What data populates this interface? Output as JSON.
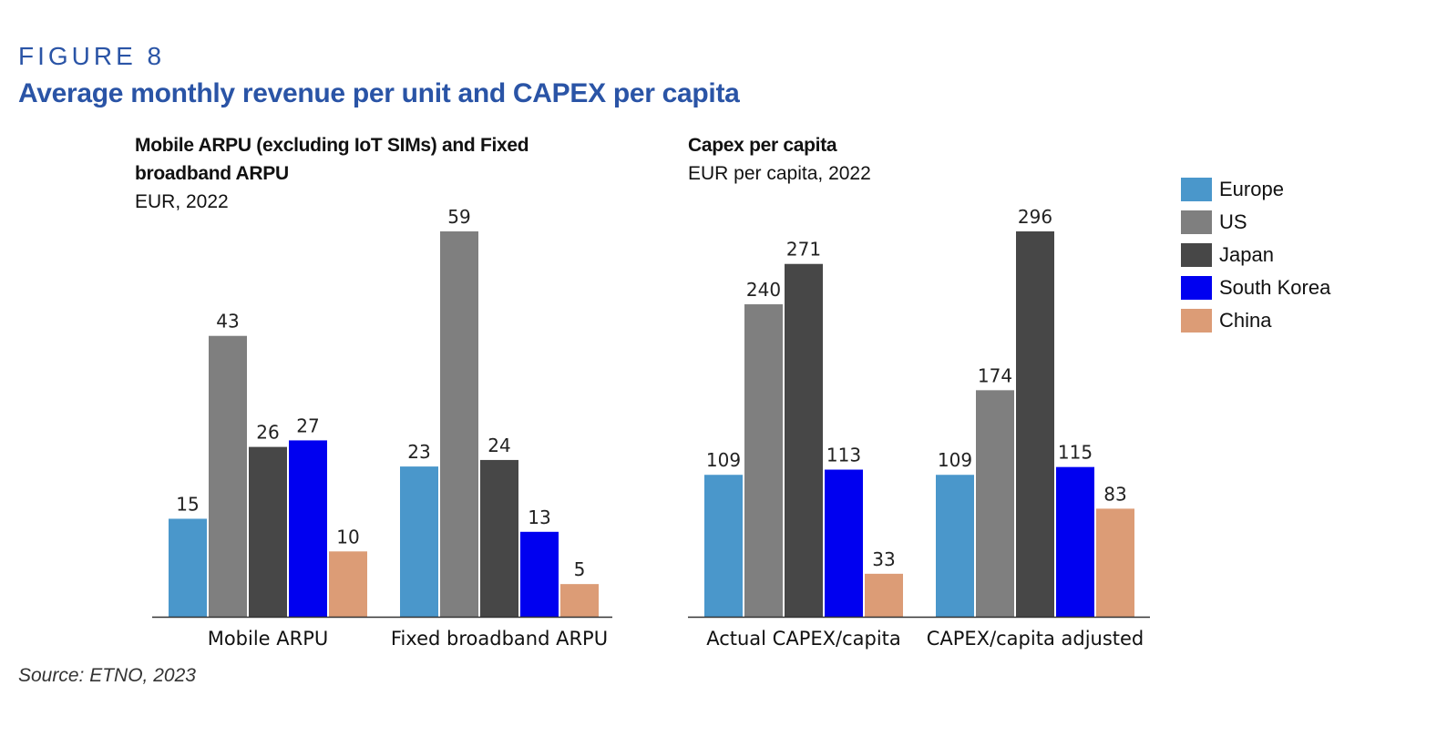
{
  "figure": {
    "label": "FIGURE 8",
    "title": "Average monthly revenue per unit and CAPEX per capita",
    "source": "Source: ETNO, 2023"
  },
  "colors": {
    "Europe": "#4a97cb",
    "US": "#7f7f7f",
    "Japan": "#474747",
    "South Korea": "#0000f0",
    "China": "#dc9c76"
  },
  "legend": {
    "position": "right",
    "items": [
      {
        "name": "Europe",
        "color": "#4a97cb"
      },
      {
        "name": "US",
        "color": "#7f7f7f"
      },
      {
        "name": "Japan",
        "color": "#474747"
      },
      {
        "name": "South Korea",
        "color": "#0000f0"
      },
      {
        "name": "China",
        "color": "#dc9c76"
      }
    ]
  },
  "chart_data": [
    {
      "type": "bar",
      "title": "Mobile ARPU (excluding IoT SIMs) and Fixed broadband ARPU",
      "title_lines": [
        "Mobile ARPU (excluding IoT SIMs) and Fixed",
        "broadband ARPU"
      ],
      "unit": "EUR, 2022",
      "categories": [
        "Mobile ARPU",
        "Fixed broadband ARPU"
      ],
      "series": [
        {
          "name": "Europe",
          "values": [
            15,
            23
          ]
        },
        {
          "name": "US",
          "values": [
            43,
            59
          ]
        },
        {
          "name": "Japan",
          "values": [
            26,
            24
          ]
        },
        {
          "name": "South Korea",
          "values": [
            27,
            13
          ]
        },
        {
          "name": "China",
          "values": [
            10,
            5
          ]
        }
      ],
      "ylim": [
        0,
        59
      ],
      "grid": false,
      "data_labels": true
    },
    {
      "type": "bar",
      "title": "Capex per capita",
      "title_lines": [
        "Capex per capita"
      ],
      "unit": "EUR per capita, 2022",
      "categories": [
        "Actual CAPEX/capita",
        "CAPEX/capita adjusted"
      ],
      "series": [
        {
          "name": "Europe",
          "values": [
            109,
            109
          ]
        },
        {
          "name": "US",
          "values": [
            240,
            174
          ]
        },
        {
          "name": "Japan",
          "values": [
            271,
            296
          ]
        },
        {
          "name": "South Korea",
          "values": [
            113,
            115
          ]
        },
        {
          "name": "China",
          "values": [
            33,
            83
          ]
        }
      ],
      "ylim": [
        0,
        296
      ],
      "grid": false,
      "data_labels": true
    }
  ]
}
